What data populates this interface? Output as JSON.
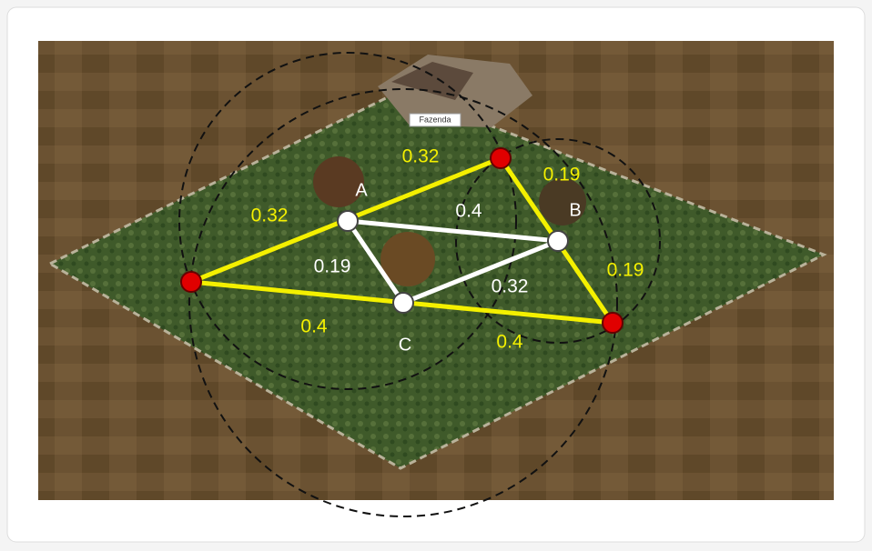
{
  "building_label": "Fazenda",
  "points": [
    {
      "label": "A"
    },
    {
      "label": "B"
    },
    {
      "label": "C"
    }
  ],
  "edge_labels": [
    {
      "text": "0.32",
      "color": "yellow"
    },
    {
      "text": "0.19",
      "color": "yellow"
    },
    {
      "text": "0.32",
      "color": "yellow"
    },
    {
      "text": "0.4",
      "color": "white"
    },
    {
      "text": "0.19",
      "color": "white"
    },
    {
      "text": "0.32",
      "color": "white"
    },
    {
      "text": "0.19",
      "color": "yellow"
    },
    {
      "text": "0.4",
      "color": "yellow"
    },
    {
      "text": "0.4",
      "color": "yellow"
    }
  ]
}
